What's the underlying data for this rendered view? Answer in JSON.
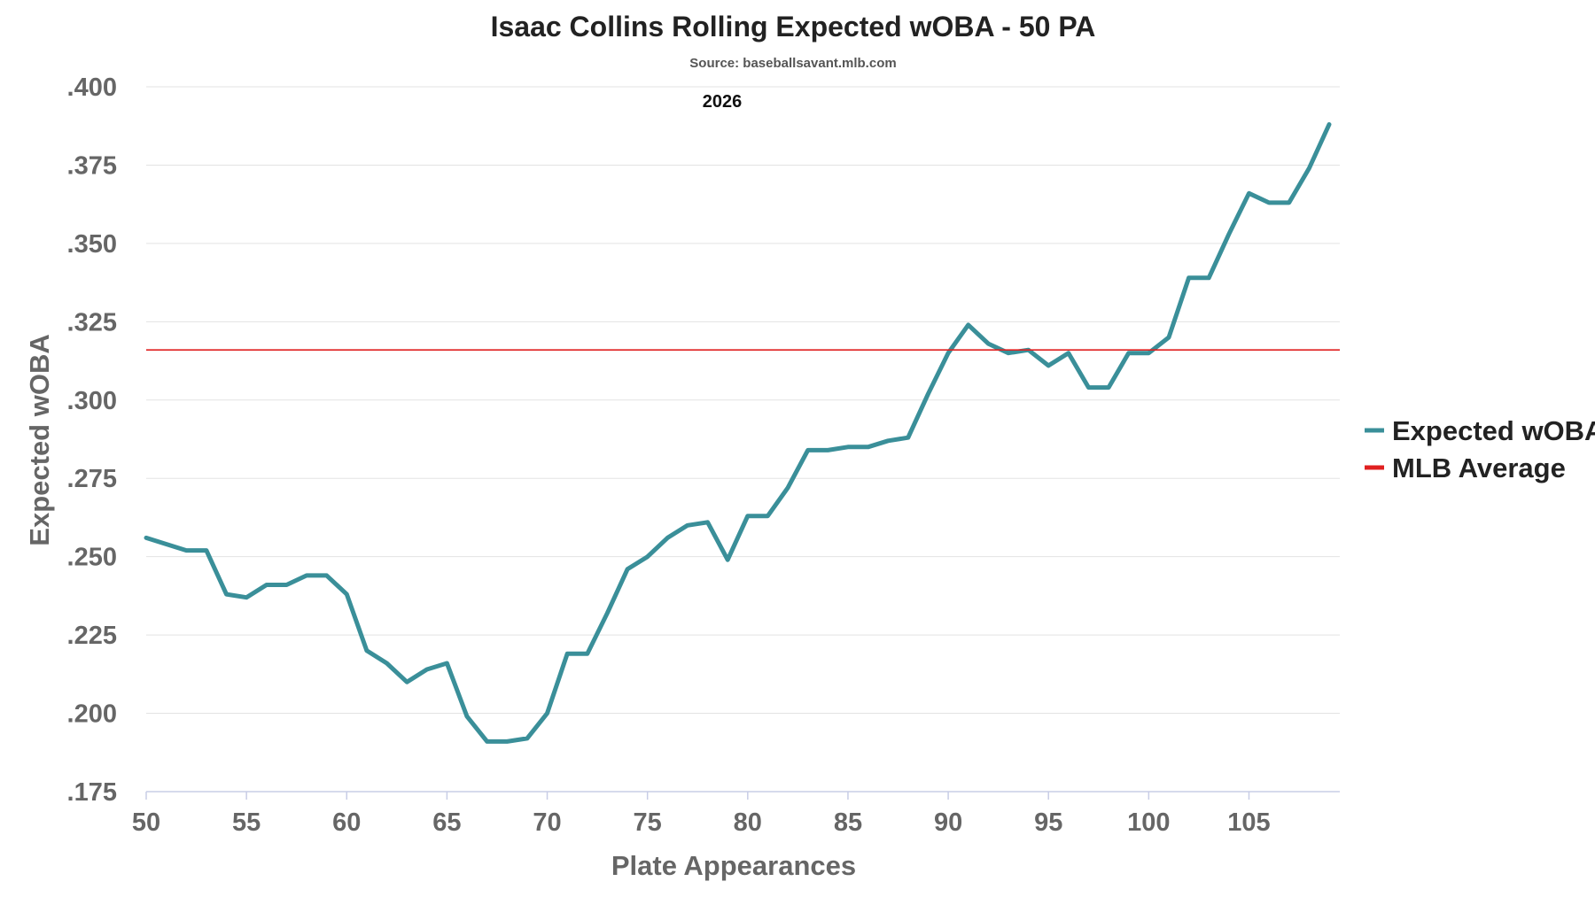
{
  "chart_data": {
    "type": "line",
    "title": "Isaac Collins Rolling Expected wOBA - 50 PA",
    "subtitle": "Source: baseballsavant.mlb.com",
    "season_label": "2026",
    "xlabel": "Plate Appearances",
    "ylabel": "Expected wOBA",
    "xlim": [
      50,
      109
    ],
    "ylim": [
      0.175,
      0.4
    ],
    "x_ticks": [
      50,
      55,
      60,
      65,
      70,
      75,
      80,
      85,
      90,
      95,
      100,
      105
    ],
    "x_tick_labels": [
      "50",
      "55",
      "60",
      "65",
      "70",
      "75",
      "80",
      "85",
      "90",
      "95",
      "100",
      "105"
    ],
    "y_ticks": [
      0.175,
      0.2,
      0.225,
      0.25,
      0.275,
      0.3,
      0.325,
      0.35,
      0.375,
      0.4
    ],
    "y_tick_labels": [
      ".175",
      ".200",
      ".225",
      ".250",
      ".275",
      ".300",
      ".325",
      ".350",
      ".375",
      ".400"
    ],
    "grid": true,
    "legend_position": "right",
    "x": [
      50,
      51,
      52,
      53,
      54,
      55,
      56,
      57,
      58,
      59,
      60,
      61,
      62,
      63,
      64,
      65,
      66,
      67,
      68,
      69,
      70,
      71,
      72,
      73,
      74,
      75,
      76,
      77,
      78,
      79,
      80,
      81,
      82,
      83,
      84,
      85,
      86,
      87,
      88,
      89,
      90,
      91,
      92,
      93,
      94,
      95,
      96,
      97,
      98,
      99,
      100,
      101,
      102,
      103,
      104,
      105,
      106,
      107,
      108,
      109
    ],
    "series": [
      {
        "name": "Expected wOBA",
        "color": "#3a8f99",
        "values": [
          0.256,
          0.254,
          0.252,
          0.252,
          0.238,
          0.237,
          0.241,
          0.241,
          0.244,
          0.244,
          0.238,
          0.22,
          0.216,
          0.21,
          0.214,
          0.216,
          0.199,
          0.191,
          0.191,
          0.192,
          0.2,
          0.219,
          0.219,
          0.232,
          0.246,
          0.25,
          0.256,
          0.26,
          0.261,
          0.249,
          0.263,
          0.263,
          0.272,
          0.284,
          0.284,
          0.285,
          0.285,
          0.287,
          0.288,
          0.302,
          0.315,
          0.324,
          0.318,
          0.315,
          0.316,
          0.311,
          0.315,
          0.304,
          0.304,
          0.315,
          0.315,
          0.32,
          0.339,
          0.339,
          0.353,
          0.366,
          0.363,
          0.363,
          0.374,
          0.388
        ]
      },
      {
        "name": "MLB Average",
        "color": "#e02020",
        "type": "reference-line",
        "value": 0.316
      }
    ]
  }
}
